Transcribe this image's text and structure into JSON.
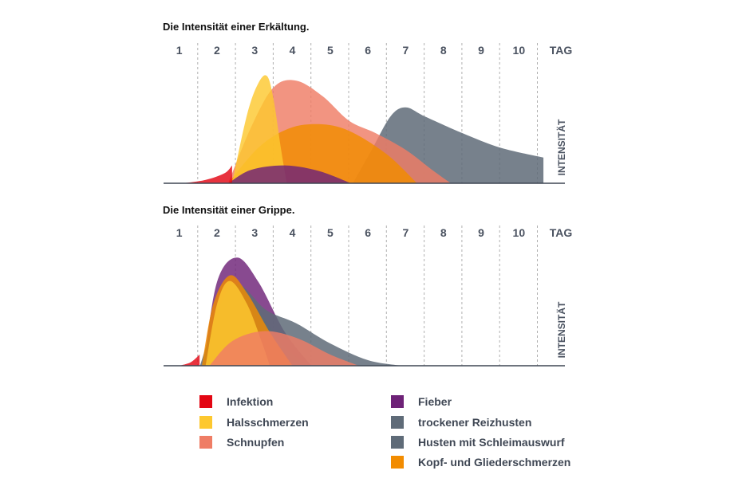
{
  "colors": {
    "Infektion": "#e30613",
    "Halsschmerzen": "#fdc82f",
    "Schnupfen": "#ef7d65",
    "Fieber": "#6e2277",
    "trockener Reizhusten": "#5f6b78",
    "Husten mit Schleimauswurf": "#5f6b78",
    "Kopf- und Gliederschmerzen": "#f28c00",
    "axis": "#3f4754",
    "grid": "#b0b0b0"
  },
  "legend": {
    "items": [
      {
        "label": "Infektion",
        "color": "#e30613"
      },
      {
        "label": "Halsschmerzen",
        "color": "#fdc82f"
      },
      {
        "label": "Schnupfen",
        "color": "#ef7d65"
      },
      {
        "label": "Fieber",
        "color": "#6e2277"
      },
      {
        "label": "trockener Reizhusten",
        "color": "#5f6b78"
      },
      {
        "label": "Husten mit Schleimauswurf",
        "color": "#5f6b78"
      },
      {
        "label": "Kopf- und Gliederschmerzen",
        "color": "#f28c00"
      }
    ]
  },
  "chart_data": [
    {
      "type": "area",
      "title": "Die Intensität einer Erkältung.",
      "xlabel": "TAG",
      "ylabel": "INTENSITÄT",
      "categories": [
        "1",
        "2",
        "3",
        "4",
        "5",
        "6",
        "7",
        "8",
        "9",
        "10"
      ],
      "xlim": [
        1,
        11
      ],
      "ylim": [
        0,
        100
      ],
      "grid": "vertical dashed",
      "series": [
        {
          "name": "trockener Reizhusten",
          "points": [
            [
              6.1,
              0
            ],
            [
              6.6,
              30
            ],
            [
              7.1,
              60
            ],
            [
              7.5,
              68
            ],
            [
              8.0,
              60
            ],
            [
              9.0,
              45
            ],
            [
              10.0,
              32
            ],
            [
              11.15,
              23
            ]
          ],
          "end": "drop"
        },
        {
          "name": "Schnupfen",
          "points": [
            [
              2.8,
              0
            ],
            [
              3.4,
              50
            ],
            [
              4.0,
              86
            ],
            [
              4.6,
              92
            ],
            [
              5.3,
              78
            ],
            [
              6.0,
              56
            ],
            [
              6.7,
              45
            ],
            [
              7.5,
              30
            ],
            [
              8.2,
              12
            ],
            [
              8.7,
              0
            ]
          ]
        },
        {
          "name": "Kopf- und Gliederschmerzen",
          "points": [
            [
              2.8,
              0
            ],
            [
              3.6,
              32
            ],
            [
              4.4,
              49
            ],
            [
              5.2,
              53
            ],
            [
              6.0,
              47
            ],
            [
              7.0,
              26
            ],
            [
              7.8,
              0
            ]
          ]
        },
        {
          "name": "Halsschmerzen",
          "points": [
            [
              2.9,
              0
            ],
            [
              3.3,
              62
            ],
            [
              3.6,
              90
            ],
            [
              3.83,
              96
            ],
            [
              4.0,
              75
            ],
            [
              4.2,
              30
            ],
            [
              4.35,
              0
            ]
          ]
        },
        {
          "name": "Fieber",
          "points": [
            [
              2.8,
              0
            ],
            [
              3.4,
              12
            ],
            [
              4.3,
              16
            ],
            [
              5.2,
              11
            ],
            [
              6.05,
              0
            ]
          ]
        },
        {
          "name": "Infektion",
          "points": [
            [
              1.6,
              0
            ],
            [
              2.2,
              3
            ],
            [
              2.7,
              9
            ],
            [
              2.9,
              16
            ]
          ],
          "end": "drop"
        }
      ]
    },
    {
      "type": "area",
      "title": "Die Intensität einer Grippe.",
      "xlabel": "TAG",
      "ylabel": "INTENSITÄT",
      "categories": [
        "1",
        "2",
        "3",
        "4",
        "5",
        "6",
        "7",
        "8",
        "9",
        "10"
      ],
      "xlim": [
        1,
        11
      ],
      "ylim": [
        0,
        100
      ],
      "grid": "vertical dashed",
      "series": [
        {
          "name": "Infektion",
          "points": [
            [
              1.5,
              0
            ],
            [
              1.8,
              3
            ],
            [
              2.04,
              10
            ]
          ],
          "end": "drop"
        },
        {
          "name": "Fieber",
          "points": [
            [
              2.14,
              0
            ],
            [
              2.5,
              75
            ],
            [
              3.03,
              97
            ],
            [
              3.6,
              75
            ],
            [
              4.3,
              30
            ],
            [
              5.0,
              0
            ]
          ]
        },
        {
          "name": "Husten mit Schleimauswurf",
          "points": [
            [
              2.05,
              0
            ],
            [
              2.5,
              45
            ],
            [
              3.03,
              73
            ],
            [
              3.8,
              50
            ],
            [
              4.6,
              38
            ],
            [
              5.5,
              20
            ],
            [
              6.5,
              5
            ],
            [
              7.4,
              0
            ]
          ]
        },
        {
          "name": "trockener Reizhusten",
          "points": [
            [
              2.1,
              0
            ],
            [
              2.6,
              55
            ],
            [
              3.03,
              73
            ],
            [
              3.6,
              50
            ],
            [
              4.2,
              20
            ],
            [
              4.9,
              0
            ]
          ]
        },
        {
          "name": "Kopf- und Gliederschmerzen",
          "points": [
            [
              2.1,
              0
            ],
            [
              2.4,
              55
            ],
            [
              2.84,
              81
            ],
            [
              3.3,
              65
            ],
            [
              3.9,
              30
            ],
            [
              4.5,
              0
            ]
          ]
        },
        {
          "name": "Halsschmerzen",
          "points": [
            [
              2.2,
              0
            ],
            [
              2.5,
              55
            ],
            [
              2.84,
              76
            ],
            [
              3.3,
              55
            ],
            [
              3.7,
              20
            ],
            [
              3.9,
              0
            ]
          ]
        },
        {
          "name": "Schnupfen",
          "points": [
            [
              2.3,
              0
            ],
            [
              2.9,
              22
            ],
            [
              3.73,
              31
            ],
            [
              4.6,
              25
            ],
            [
              5.5,
              10
            ],
            [
              6.26,
              0
            ]
          ]
        }
      ]
    }
  ]
}
